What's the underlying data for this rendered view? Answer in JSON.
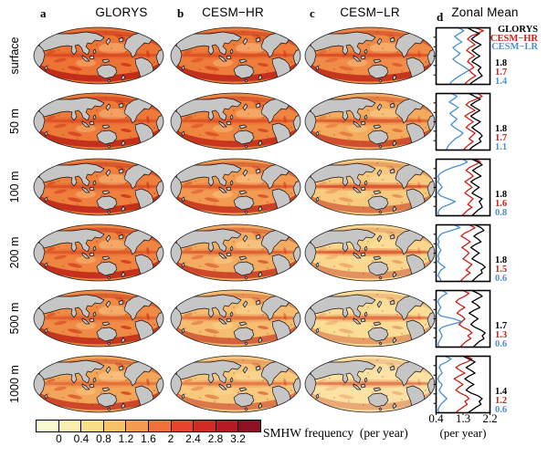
{
  "columns": [
    {
      "letter": "a",
      "title": "GLORYS"
    },
    {
      "letter": "b",
      "title": "CESM−HR"
    },
    {
      "letter": "c",
      "title": "CESM−LR"
    },
    {
      "letter": "d",
      "title": "Zonal Mean"
    }
  ],
  "legend": [
    {
      "label": "GLORYS",
      "color": "#000000"
    },
    {
      "label": "CESM−HR",
      "color": "#cc2118"
    },
    {
      "label": "CESM−LR",
      "color": "#4a90d2"
    }
  ],
  "rows": [
    {
      "depth": "surface",
      "means": [
        "1.8",
        "1.7",
        "1.4"
      ],
      "maps": [
        {
          "ocean": "#ed7434",
          "band": 0.55,
          "south": 0.95,
          "streak": 0.85
        },
        {
          "ocean": "#ee7c3b",
          "band": 0.5,
          "south": 0.9,
          "streak": 0.7
        },
        {
          "ocean": "#f08c48",
          "band": 0.6,
          "south": 0.85,
          "streak": 0.5
        }
      ]
    },
    {
      "depth": "50 m",
      "means": [
        "1.8",
        "1.7",
        "1.1"
      ],
      "maps": [
        {
          "ocean": "#ed7a38",
          "band": 0.5,
          "south": 0.9,
          "streak": 0.85
        },
        {
          "ocean": "#f08540",
          "band": 0.5,
          "south": 0.85,
          "streak": 0.7
        },
        {
          "ocean": "#f5ab5e",
          "band": 0.55,
          "south": 0.7,
          "streak": 0.45
        }
      ]
    },
    {
      "depth": "100 m",
      "means": [
        "1.8",
        "1.6",
        "0.8"
      ],
      "maps": [
        {
          "ocean": "#ee7f3c",
          "band": 0.5,
          "south": 0.9,
          "streak": 0.85
        },
        {
          "ocean": "#f29a52",
          "band": 0.5,
          "south": 0.8,
          "streak": 0.65
        },
        {
          "ocean": "#f8ca7e",
          "band": 0.65,
          "south": 0.5,
          "streak": 0.35
        }
      ]
    },
    {
      "depth": "200 m",
      "means": [
        "1.8",
        "1.5",
        "0.6"
      ],
      "maps": [
        {
          "ocean": "#ef8540",
          "band": 0.45,
          "south": 0.9,
          "streak": 0.8
        },
        {
          "ocean": "#f4ac62",
          "band": 0.5,
          "south": 0.75,
          "streak": 0.6
        },
        {
          "ocean": "#fad78c",
          "band": 0.6,
          "south": 0.4,
          "streak": 0.3
        }
      ]
    },
    {
      "depth": "500 m",
      "means": [
        "1.7",
        "1.3",
        "0.6"
      ],
      "maps": [
        {
          "ocean": "#f08b45",
          "band": 0.4,
          "south": 0.85,
          "streak": 0.8
        },
        {
          "ocean": "#f6bd70",
          "band": 0.45,
          "south": 0.6,
          "streak": 0.55
        },
        {
          "ocean": "#fbdd94",
          "band": 0.5,
          "south": 0.35,
          "streak": 0.3
        }
      ]
    },
    {
      "depth": "1000 m",
      "means": [
        "1.4",
        "1.2",
        "0.6"
      ],
      "maps": [
        {
          "ocean": "#f3a55a",
          "band": 0.35,
          "south": 0.75,
          "streak": 0.7
        },
        {
          "ocean": "#f8c87c",
          "band": 0.4,
          "south": 0.5,
          "streak": 0.5
        },
        {
          "ocean": "#fce2a2",
          "band": 0.45,
          "south": 0.3,
          "streak": 0.25
        }
      ]
    }
  ],
  "colorbar": {
    "label": "SMHW frequency  (per year)",
    "tick_labels": [
      "0",
      "0.4",
      "0.8",
      "1.2",
      "1.6",
      "2",
      "2.4",
      "2.8",
      "3.2"
    ],
    "segment_colors": [
      "#fbf9cf",
      "#faefaf",
      "#f9de89",
      "#f7c366",
      "#f59b52",
      "#f2703b",
      "#e8432c",
      "#d22b24",
      "#b81b25",
      "#8e1023"
    ]
  },
  "zonal_axis": {
    "tick_labels": [
      "0.4",
      "1.3",
      "2.2"
    ],
    "label": "(per year)",
    "min": 0.4,
    "max": 2.2
  },
  "chart_data": {
    "type": "line",
    "title": "Zonal Mean",
    "xlabel": "(per year)",
    "x_ticks": [
      0.4,
      1.3,
      2.2
    ],
    "x_range": [
      0.4,
      2.2
    ],
    "y_axis": "latitude, 90N (top) to 90S (bottom), 21 evenly spaced samples",
    "legend_position": "top-right of first panel",
    "legend": [
      "GLORYS",
      "CESM−HR",
      "CESM−LR"
    ],
    "colorbar_values": [
      0,
      0.4,
      0.8,
      1.2,
      1.6,
      2,
      2.4,
      2.8,
      3.2
    ],
    "panels": [
      {
        "depth": "surface",
        "global_means": {
          "glorys": 1.8,
          "cesm_hr": 1.7,
          "cesm_lr": 1.4
        },
        "series": {
          "glorys": [
            1.45,
            1.62,
            1.85,
            1.7,
            1.58,
            1.72,
            1.9,
            1.74,
            1.6,
            1.72,
            1.86,
            1.7,
            1.6,
            1.76,
            1.9,
            1.8,
            1.86,
            1.94,
            1.78,
            1.64,
            1.52
          ],
          "cesm_hr": [
            1.7,
            1.98,
            1.78,
            1.55,
            1.45,
            1.58,
            1.7,
            1.52,
            1.42,
            1.56,
            1.68,
            1.52,
            1.45,
            1.58,
            1.66,
            1.5,
            1.6,
            1.72,
            1.56,
            1.44,
            1.34
          ],
          "cesm_lr": [
            1.15,
            1.32,
            1.18,
            1.02,
            1.12,
            1.26,
            1.1,
            0.96,
            1.06,
            1.2,
            1.1,
            0.96,
            1.06,
            1.22,
            1.36,
            1.5,
            1.34,
            1.18,
            1.04,
            0.92,
            0.86
          ]
        }
      },
      {
        "depth": "50 m",
        "global_means": {
          "glorys": 1.8,
          "cesm_hr": 1.7,
          "cesm_lr": 1.1
        },
        "series": {
          "glorys": [
            1.5,
            1.68,
            1.88,
            1.7,
            1.56,
            1.7,
            1.86,
            1.7,
            1.56,
            1.7,
            1.88,
            1.74,
            1.6,
            1.72,
            1.86,
            1.94,
            1.84,
            1.9,
            1.74,
            1.6,
            1.5
          ],
          "cesm_hr": [
            1.78,
            1.94,
            1.74,
            1.5,
            1.4,
            1.54,
            1.7,
            1.5,
            1.36,
            1.5,
            1.64,
            1.5,
            1.4,
            1.54,
            1.7,
            1.6,
            1.5,
            1.64,
            1.5,
            1.4,
            1.3
          ],
          "cesm_lr": [
            0.92,
            1.1,
            0.98,
            0.84,
            1.0,
            1.14,
            1.0,
            0.86,
            0.96,
            1.1,
            1.0,
            0.9,
            1.0,
            1.16,
            1.3,
            1.2,
            1.04,
            0.94,
            0.84,
            0.78,
            0.74
          ]
        }
      },
      {
        "depth": "100 m",
        "global_means": {
          "glorys": 1.8,
          "cesm_hr": 1.6,
          "cesm_lr": 0.8
        },
        "series": {
          "glorys": [
            1.6,
            1.8,
            1.94,
            1.76,
            1.62,
            1.76,
            1.9,
            1.7,
            1.56,
            1.7,
            1.84,
            1.7,
            1.6,
            1.76,
            1.94,
            1.84,
            1.9,
            1.94,
            1.8,
            1.7,
            1.6
          ],
          "cesm_hr": [
            1.7,
            1.88,
            1.7,
            1.5,
            1.4,
            1.54,
            1.64,
            1.5,
            1.36,
            1.5,
            1.6,
            1.46,
            1.36,
            1.5,
            1.64,
            1.54,
            1.46,
            1.6,
            1.46,
            1.36,
            1.26
          ],
          "cesm_lr": [
            1.3,
            1.44,
            1.24,
            0.94,
            0.7,
            0.54,
            0.46,
            0.5,
            0.46,
            0.54,
            0.6,
            0.5,
            0.46,
            0.56,
            0.8,
            1.04,
            0.84,
            0.6,
            0.5,
            0.46,
            0.5
          ]
        }
      },
      {
        "depth": "200 m",
        "global_means": {
          "glorys": 1.8,
          "cesm_hr": 1.5,
          "cesm_lr": 0.6
        },
        "series": {
          "glorys": [
            1.7,
            1.9,
            2.0,
            1.8,
            1.66,
            1.8,
            1.9,
            1.7,
            1.56,
            1.7,
            1.84,
            1.7,
            1.6,
            1.76,
            1.94,
            2.04,
            1.9,
            1.94,
            1.8,
            1.7,
            1.6
          ],
          "cesm_hr": [
            1.5,
            1.7,
            1.54,
            1.34,
            1.24,
            1.4,
            1.54,
            1.4,
            1.26,
            1.4,
            1.5,
            1.4,
            1.3,
            1.44,
            1.6,
            1.5,
            1.4,
            1.54,
            1.4,
            1.3,
            1.2
          ],
          "cesm_lr": [
            1.0,
            1.2,
            0.9,
            0.6,
            0.5,
            0.46,
            0.5,
            0.46,
            0.5,
            0.56,
            0.5,
            0.46,
            0.5,
            0.46,
            0.56,
            0.7,
            0.56,
            0.5,
            0.46,
            0.54,
            0.56
          ]
        }
      },
      {
        "depth": "500 m",
        "global_means": {
          "glorys": 1.7,
          "cesm_hr": 1.3,
          "cesm_lr": 0.6
        },
        "series": {
          "glorys": [
            1.6,
            1.8,
            1.94,
            1.76,
            1.6,
            1.76,
            1.86,
            1.66,
            1.5,
            1.66,
            1.8,
            1.66,
            1.56,
            1.7,
            1.9,
            2.04,
            1.94,
            2.0,
            1.84,
            1.74,
            1.64
          ],
          "cesm_hr": [
            1.3,
            1.5,
            1.36,
            1.16,
            1.06,
            1.2,
            1.36,
            1.2,
            1.1,
            1.26,
            1.36,
            1.26,
            1.16,
            1.3,
            1.5,
            1.6,
            1.46,
            1.56,
            1.4,
            1.3,
            1.2
          ],
          "cesm_lr": [
            0.6,
            0.76,
            0.6,
            0.5,
            0.46,
            0.5,
            0.56,
            0.5,
            0.46,
            0.56,
            1.0,
            1.26,
            0.9,
            0.6,
            0.5,
            0.56,
            0.6,
            0.56,
            0.5,
            0.46,
            0.5
          ]
        }
      },
      {
        "depth": "1000 m",
        "global_means": {
          "glorys": 1.4,
          "cesm_hr": 1.2,
          "cesm_lr": 0.6
        },
        "series": {
          "glorys": [
            1.3,
            1.5,
            1.7,
            1.56,
            1.4,
            1.56,
            1.7,
            1.5,
            1.36,
            1.5,
            1.66,
            1.5,
            1.4,
            1.56,
            1.8,
            1.94,
            1.84,
            1.9,
            1.74,
            1.6,
            1.46
          ],
          "cesm_hr": [
            1.4,
            1.6,
            1.44,
            1.2,
            1.06,
            1.2,
            1.36,
            1.16,
            1.0,
            1.16,
            1.3,
            1.16,
            1.06,
            1.2,
            1.4,
            1.5,
            1.36,
            1.44,
            1.3,
            1.16,
            1.06
          ],
          "cesm_lr": [
            0.7,
            0.9,
            0.76,
            0.56,
            0.5,
            0.56,
            0.6,
            0.5,
            0.46,
            0.5,
            0.6,
            0.56,
            0.5,
            0.56,
            0.66,
            0.76,
            0.66,
            0.56,
            0.5,
            0.46,
            0.5
          ]
        }
      }
    ]
  }
}
